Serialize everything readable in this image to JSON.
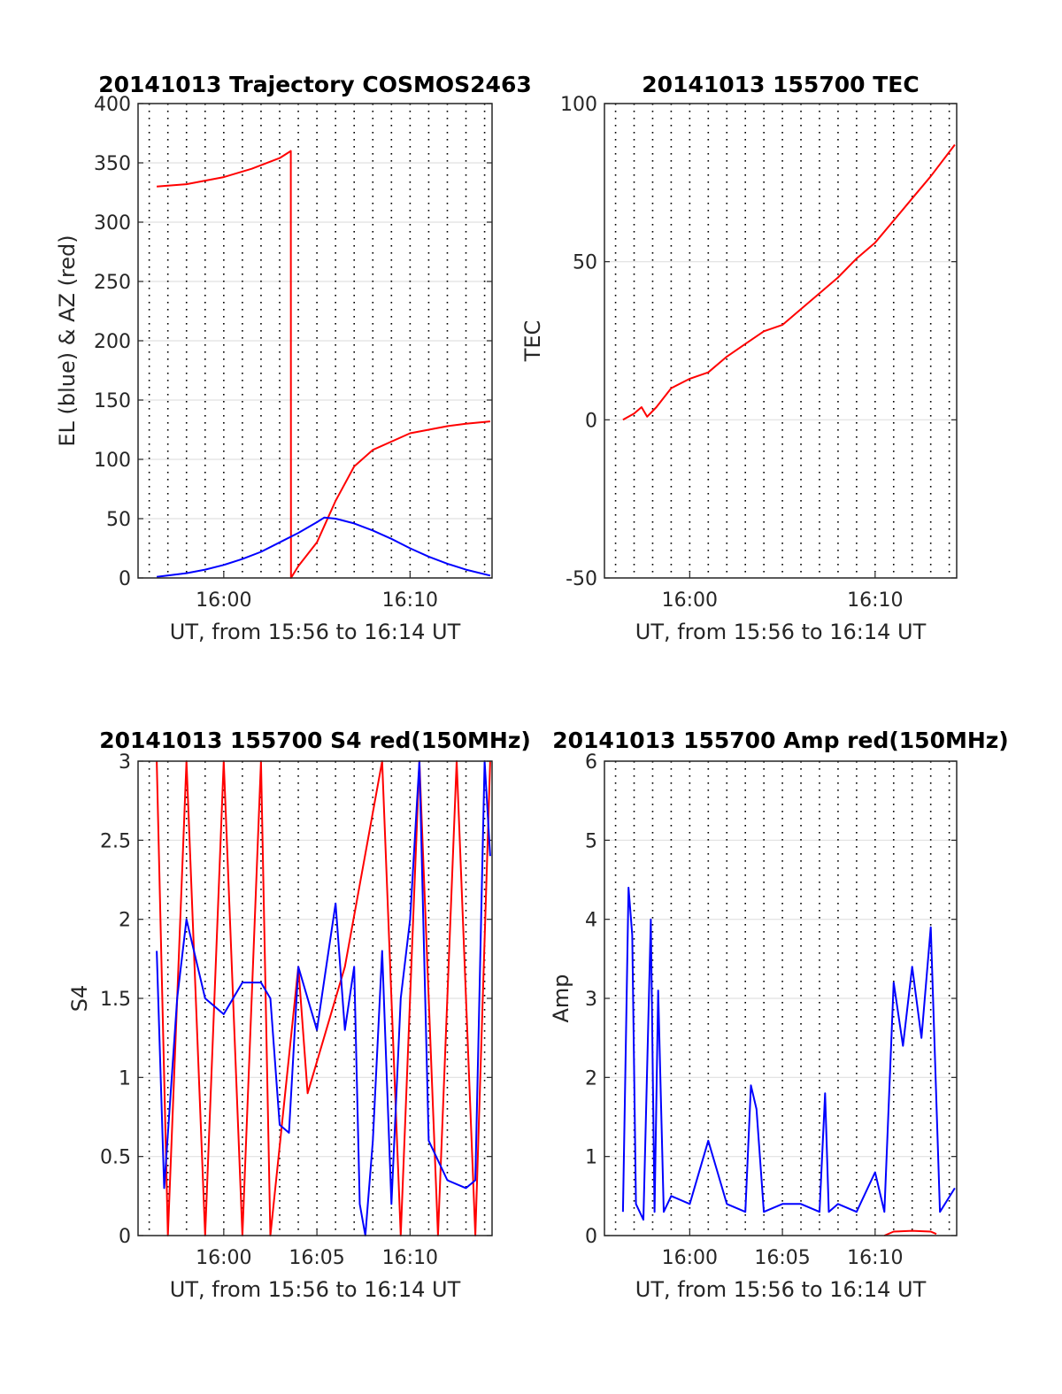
{
  "chart_data": [
    {
      "type": "line",
      "title": "20141013 Trajectory COSMOS2463",
      "xlabel": "UT, from 15:56 to 16:14 UT",
      "ylabel": "EL (blue) & AZ (red)",
      "xlim": [
        15.95,
        16.183
      ],
      "x_minutes_range": [
        -3.0,
        15.0
      ],
      "x_ticks": [
        {
          "value": 0,
          "label": "16:00"
        },
        {
          "value": 10,
          "label": "16:10"
        }
      ],
      "ylim": [
        0,
        400
      ],
      "y_ticks": [
        0,
        50,
        100,
        150,
        200,
        250,
        300,
        350,
        400
      ],
      "grid": "dotted vertical every minute, horizontal at y ticks",
      "series": [
        {
          "color": "#ff0000",
          "x": [
            -3.6,
            -2,
            0,
            1.5,
            3.0,
            3.6,
            3.61,
            4.0,
            5.0,
            6.0,
            7.0,
            8.0,
            10.0,
            12.0,
            13.0,
            14.3
          ],
          "y": [
            330,
            332,
            338,
            345,
            354,
            360,
            0,
            10,
            30,
            65,
            94,
            108,
            122,
            128,
            130,
            132
          ]
        },
        {
          "color": "#0000ff",
          "x": [
            -3.6,
            -2,
            -1,
            0,
            1,
            2,
            3,
            4,
            5,
            5.4,
            6,
            7,
            8,
            9,
            10,
            11,
            12,
            13,
            14.3
          ],
          "y": [
            1,
            4,
            7,
            11,
            16,
            22,
            30,
            38,
            47,
            51,
            50,
            46,
            40,
            33,
            25,
            18,
            12,
            7,
            2
          ]
        }
      ]
    },
    {
      "type": "line",
      "title": "20141013 155700 TEC",
      "xlabel": "UT, from 15:56 to 16:14 UT",
      "ylabel": "TEC",
      "x_ticks": [
        {
          "value": 0,
          "label": "16:00"
        },
        {
          "value": 10,
          "label": "16:10"
        }
      ],
      "ylim": [
        -50,
        100
      ],
      "y_ticks": [
        -50,
        0,
        50,
        100
      ],
      "series": [
        {
          "color": "#ff0000",
          "x": [
            -3.6,
            -3,
            -2.6,
            -2.3,
            -1.8,
            -1,
            0,
            1,
            2,
            3,
            4,
            5,
            6,
            7,
            8,
            9,
            10,
            11,
            12,
            13,
            14.3
          ],
          "y": [
            0,
            2,
            4,
            1,
            4,
            10,
            13,
            15,
            20,
            24,
            28,
            30,
            35,
            40,
            45,
            51,
            56,
            63,
            70,
            77,
            87
          ]
        }
      ]
    },
    {
      "type": "line",
      "title": "20141013 155700 S4 red(150MHz)",
      "xlabel": "UT, from 15:56 to 16:14 UT",
      "ylabel": "S4",
      "x_ticks": [
        {
          "value": 0,
          "label": "16:00"
        },
        {
          "value": 5,
          "label": "16:05"
        },
        {
          "value": 10,
          "label": "16:10"
        }
      ],
      "ylim": [
        0,
        3
      ],
      "y_ticks": [
        0,
        0.5,
        1,
        1.5,
        2,
        2.5,
        3
      ],
      "series": [
        {
          "color": "#ff0000",
          "description_values": "dense oscillation 0-3 between 15:57 and 16:02, sparse to 16:07, dense again 16:08-16:14",
          "x": [
            -3.6,
            -3.0,
            -2.0,
            -1.0,
            0.0,
            1.0,
            2.0,
            2.5,
            4.0,
            4.5,
            6.5,
            8.5,
            9.5,
            10.5,
            11.5,
            12.5,
            13.5,
            14.3
          ],
          "y": [
            3,
            0,
            3,
            0,
            3,
            0,
            3,
            0,
            1.7,
            0.9,
            1.7,
            3,
            0,
            3,
            0,
            3,
            0,
            3
          ]
        },
        {
          "color": "#0000ff",
          "x": [
            -3.6,
            -3.2,
            -2.5,
            -2,
            -1,
            0,
            1,
            2,
            2.5,
            3.0,
            3.5,
            4.0,
            4.5,
            5.0,
            5.5,
            6.0,
            6.5,
            7.0,
            7.3,
            7.6,
            8.0,
            8.5,
            9.0,
            9.5,
            10.0,
            10.5,
            11.0,
            12.0,
            13.0,
            13.5,
            14.0,
            14.3
          ],
          "y": [
            1.8,
            0.3,
            1.5,
            2.0,
            1.5,
            1.4,
            1.6,
            1.6,
            1.5,
            0.7,
            0.65,
            1.7,
            1.5,
            1.3,
            1.7,
            2.1,
            1.3,
            1.7,
            0.2,
            0.0,
            0.6,
            1.8,
            0.2,
            1.5,
            2.0,
            3.0,
            0.6,
            0.35,
            0.3,
            0.35,
            3.0,
            2.4
          ]
        }
      ]
    },
    {
      "type": "line",
      "title": "20141013 155700 Amp red(150MHz)",
      "xlabel": "UT, from 15:56 to 16:14 UT",
      "ylabel": "Amp",
      "x_ticks": [
        {
          "value": 0,
          "label": "16:00"
        },
        {
          "value": 5,
          "label": "16:05"
        },
        {
          "value": 10,
          "label": "16:10"
        }
      ],
      "ylim": [
        0,
        6
      ],
      "y_ticks": [
        0,
        1,
        2,
        3,
        4,
        5,
        6
      ],
      "series": [
        {
          "color": "#0000ff",
          "x": [
            -3.6,
            -3.3,
            -3.1,
            -2.9,
            -2.5,
            -2.1,
            -1.9,
            -1.7,
            -1.4,
            -1.0,
            0.0,
            1.0,
            1.5,
            2.0,
            3.0,
            3.3,
            3.6,
            4.0,
            5.0,
            6.0,
            7.0,
            7.3,
            7.5,
            8.0,
            9.0,
            10.0,
            10.5,
            11.0,
            11.5,
            12.0,
            12.5,
            13.0,
            13.5,
            14.3
          ],
          "y": [
            0.3,
            4.4,
            3.8,
            0.4,
            0.2,
            4.0,
            0.3,
            3.1,
            0.3,
            0.5,
            0.4,
            1.2,
            0.8,
            0.4,
            0.3,
            1.9,
            1.6,
            0.3,
            0.4,
            0.4,
            0.3,
            1.8,
            0.3,
            0.4,
            0.3,
            0.8,
            0.3,
            3.2,
            2.4,
            3.4,
            2.5,
            3.9,
            0.3,
            0.6
          ]
        },
        {
          "color": "#ff0000",
          "x": [
            10.5,
            11.0,
            12.0,
            13.0,
            13.3
          ],
          "y": [
            0.0,
            0.05,
            0.06,
            0.05,
            0.02
          ]
        }
      ]
    }
  ]
}
